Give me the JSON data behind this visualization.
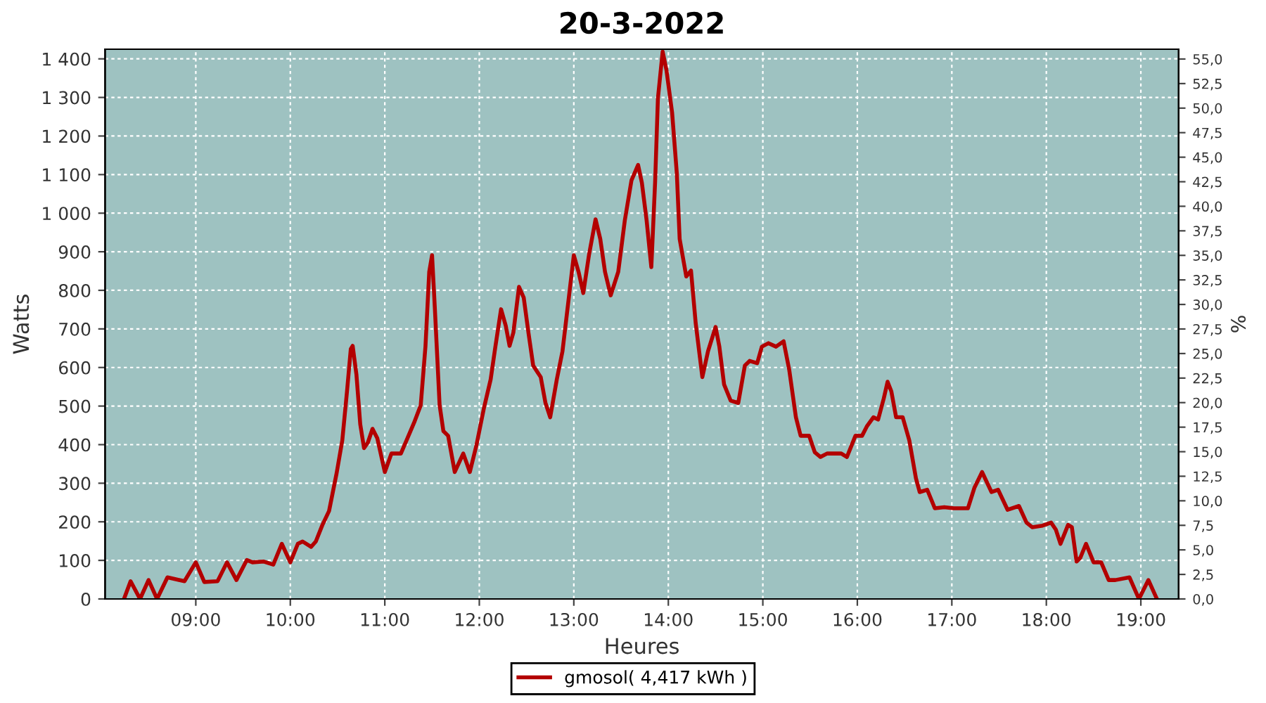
{
  "chart_data": {
    "type": "line",
    "title": "20-3-2022",
    "xlabel": "Heures",
    "ylabel": "Watts",
    "y2label": "%",
    "xlim": [
      8.04,
      19.4
    ],
    "xticks": [
      {
        "value": 9,
        "label": "09:00"
      },
      {
        "value": 10,
        "label": "10:00"
      },
      {
        "value": 11,
        "label": "11:00"
      },
      {
        "value": 12,
        "label": "12:00"
      },
      {
        "value": 13,
        "label": "13:00"
      },
      {
        "value": 14,
        "label": "14:00"
      },
      {
        "value": 15,
        "label": "15:00"
      },
      {
        "value": 16,
        "label": "16:00"
      },
      {
        "value": 17,
        "label": "17:00"
      },
      {
        "value": 18,
        "label": "18:00"
      },
      {
        "value": 19,
        "label": "19:00"
      }
    ],
    "ylim": [
      0,
      1425
    ],
    "yticks": [
      0,
      100,
      200,
      300,
      400,
      500,
      600,
      700,
      800,
      900,
      {
        "value": 1000,
        "label": "1 000"
      },
      {
        "value": 1100,
        "label": "1 100"
      },
      {
        "value": 1200,
        "label": "1 200"
      },
      {
        "value": 1300,
        "label": "1 300"
      },
      {
        "value": 1400,
        "label": "1 400"
      }
    ],
    "y2lim": [
      0,
      56
    ],
    "y2ticks": [
      {
        "value": 0,
        "label": "0,0"
      },
      {
        "value": 2.5,
        "label": "2,5"
      },
      {
        "value": 5,
        "label": "5,0"
      },
      {
        "value": 7.5,
        "label": "7,5"
      },
      {
        "value": 10,
        "label": "10,0"
      },
      {
        "value": 12.5,
        "label": "12,5"
      },
      {
        "value": 15,
        "label": "15,0"
      },
      {
        "value": 17.5,
        "label": "17,5"
      },
      {
        "value": 20,
        "label": "20,0"
      },
      {
        "value": 22.5,
        "label": "22,5"
      },
      {
        "value": 25,
        "label": "25,0"
      },
      {
        "value": 27.5,
        "label": "27,5"
      },
      {
        "value": 30,
        "label": "30,0"
      },
      {
        "value": 32.5,
        "label": "32,5"
      },
      {
        "value": 35,
        "label": "35,0"
      },
      {
        "value": 37.5,
        "label": "37,5"
      },
      {
        "value": 40,
        "label": "40,0"
      },
      {
        "value": 42.5,
        "label": "42,5"
      },
      {
        "value": 45,
        "label": "45,0"
      },
      {
        "value": 47.5,
        "label": "47,5"
      },
      {
        "value": 50,
        "label": "50,0"
      },
      {
        "value": 52.5,
        "label": "52,5"
      },
      {
        "value": 55,
        "label": "55,0"
      }
    ],
    "grid": true,
    "legend": "bottom",
    "line_style": "solid",
    "marker": "none",
    "series": [
      {
        "name": "gmosol( 4,417 kWh )",
        "color": "#b30000",
        "x": [
          8.24,
          8.31,
          8.41,
          8.5,
          8.59,
          8.7,
          8.88,
          9.0,
          9.09,
          9.23,
          9.33,
          9.43,
          9.54,
          9.6,
          9.72,
          9.82,
          9.91,
          10.0,
          10.08,
          10.13,
          10.22,
          10.27,
          10.34,
          10.41,
          10.49,
          10.55,
          10.6,
          10.64,
          10.66,
          10.7,
          10.74,
          10.78,
          10.82,
          10.87,
          10.92,
          11.0,
          11.07,
          11.17,
          11.23,
          11.31,
          11.38,
          11.43,
          11.47,
          11.5,
          11.53,
          11.58,
          11.62,
          11.67,
          11.74,
          11.83,
          11.9,
          11.97,
          12.05,
          12.12,
          12.17,
          12.23,
          12.28,
          12.32,
          12.36,
          12.42,
          12.47,
          12.52,
          12.57,
          12.65,
          12.7,
          12.75,
          12.82,
          12.88,
          12.95,
          13.0,
          13.05,
          13.1,
          13.16,
          13.23,
          13.28,
          13.33,
          13.39,
          13.47,
          13.54,
          13.61,
          13.68,
          13.72,
          13.77,
          13.82,
          13.86,
          13.89,
          13.94,
          13.98,
          14.04,
          14.09,
          14.12,
          14.19,
          14.24,
          14.29,
          14.36,
          14.42,
          14.5,
          14.54,
          14.59,
          14.66,
          14.74,
          14.81,
          14.86,
          14.94,
          14.99,
          15.06,
          15.14,
          15.22,
          15.28,
          15.35,
          15.4,
          15.49,
          15.55,
          15.61,
          15.68,
          15.83,
          15.89,
          15.98,
          16.05,
          16.1,
          16.17,
          16.22,
          16.28,
          16.32,
          16.36,
          16.41,
          16.48,
          16.55,
          16.62,
          16.66,
          16.74,
          16.82,
          16.92,
          17.02,
          17.17,
          17.24,
          17.32,
          17.42,
          17.49,
          17.59,
          17.71,
          17.79,
          17.85,
          17.96,
          18.05,
          18.1,
          18.15,
          18.23,
          18.27,
          18.32,
          18.36,
          18.42,
          18.5,
          18.58,
          18.66,
          18.73,
          18.88,
          18.98,
          19.08,
          19.17
        ],
        "values": [
          0,
          46,
          0,
          49,
          0,
          56,
          46,
          95,
          44,
          46,
          95,
          49,
          101,
          95,
          97,
          89,
          143,
          95,
          143,
          149,
          135,
          149,
          192,
          228,
          326,
          411,
          538,
          648,
          656,
          581,
          453,
          391,
          405,
          441,
          417,
          329,
          377,
          377,
          411,
          457,
          502,
          654,
          848,
          891,
          751,
          502,
          435,
          423,
          329,
          377,
          329,
          399,
          496,
          569,
          654,
          751,
          708,
          656,
          690,
          809,
          781,
          690,
          605,
          575,
          508,
          471,
          569,
          642,
          787,
          891,
          848,
          793,
          891,
          984,
          933,
          848,
          787,
          848,
          982,
          1085,
          1125,
          1079,
          982,
          860,
          1079,
          1298,
          1419,
          1371,
          1261,
          1103,
          933,
          836,
          851,
          714,
          575,
          642,
          705,
          654,
          556,
          514,
          508,
          605,
          617,
          611,
          654,
          663,
          654,
          668,
          593,
          471,
          423,
          423,
          380,
          368,
          377,
          377,
          368,
          423,
          423,
          447,
          471,
          465,
          520,
          563,
          538,
          471,
          471,
          411,
          313,
          277,
          283,
          235,
          238,
          235,
          235,
          289,
          329,
          277,
          283,
          231,
          241,
          198,
          186,
          190,
          198,
          180,
          143,
          192,
          186,
          97,
          107,
          143,
          95,
          95,
          49,
          49,
          56,
          0,
          49,
          0
        ]
      }
    ]
  }
}
